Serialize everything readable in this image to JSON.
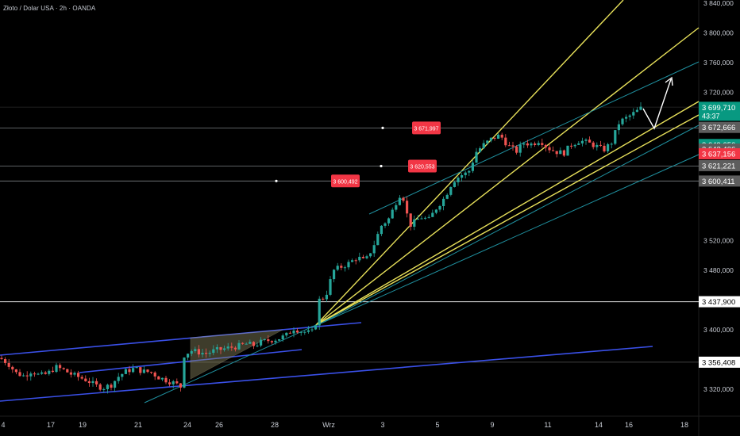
{
  "header": {
    "title": "Złoto / Dolar USA · 2h · OANDA"
  },
  "colors": {
    "background": "#000000",
    "up": "#26a69a",
    "down": "#ef5350",
    "channel": "#3a50e8",
    "fan": "#e7e05a",
    "parallel": "#1f8f9e",
    "level": "#9aa0a6",
    "label_red": "#f23645",
    "price_green": "#089981",
    "price_gray": "#5d5d5d",
    "arrow": "#ffffff"
  },
  "chart_data": {
    "type": "candlestick",
    "title": "Złoto / Dolar USA · 2h · OANDA",
    "y_axis_ticks": [
      "3 840,000",
      "3 800,000",
      "3 760,000",
      "3 720,000",
      "3 520,000",
      "3 480,000",
      "3 400,000",
      "3 320,000"
    ],
    "x_axis_ticks": [
      "4",
      "17",
      "19",
      "21",
      "24",
      "26",
      "28",
      "Wrz",
      "3",
      "5",
      "9",
      "11",
      "14",
      "16",
      "18"
    ],
    "ylim": [
      3300,
      3860
    ],
    "horizontal_levels": [
      {
        "price": 3671.997,
        "label": "3 671,997"
      },
      {
        "price": 3620.553,
        "label": "3 620,553"
      },
      {
        "price": 3600.492,
        "label": "3 600,492"
      }
    ],
    "axis_price_labels": [
      {
        "price": 3699.71,
        "label": "3 699,710",
        "sub": "43:37",
        "style": "green"
      },
      {
        "price": 3672.666,
        "label": "3 672,666",
        "style": "gray"
      },
      {
        "price": 3649.656,
        "label": "3 649,656",
        "style": "green"
      },
      {
        "price": 3643.406,
        "label": "3 643,406",
        "style": "gray"
      },
      {
        "price": 3637.156,
        "label": "3 637,156",
        "style": "red"
      },
      {
        "price": 3621.221,
        "label": "3 621,221",
        "style": "gray"
      },
      {
        "price": 3600.411,
        "label": "3 600,411",
        "style": "gray"
      },
      {
        "price": 3437.9,
        "label": "3 437,900",
        "style": "white"
      },
      {
        "price": 3356.408,
        "label": "3 356,408",
        "style": "white"
      }
    ],
    "price_path": [
      [
        0,
        3362
      ],
      [
        10,
        3355
      ],
      [
        20,
        3342
      ],
      [
        30,
        3338
      ],
      [
        40,
        3345
      ],
      [
        50,
        3338
      ],
      [
        60,
        3341
      ],
      [
        70,
        3350
      ],
      [
        80,
        3346
      ],
      [
        90,
        3340
      ],
      [
        100,
        3336
      ],
      [
        110,
        3332
      ],
      [
        120,
        3325
      ],
      [
        130,
        3322
      ],
      [
        140,
        3326
      ],
      [
        150,
        3338
      ],
      [
        160,
        3345
      ],
      [
        170,
        3348
      ],
      [
        180,
        3344
      ],
      [
        190,
        3343
      ],
      [
        200,
        3336
      ],
      [
        210,
        3332
      ],
      [
        220,
        3328
      ],
      [
        228,
        3323
      ],
      [
        232,
        3366
      ],
      [
        240,
        3372
      ],
      [
        250,
        3370
      ],
      [
        260,
        3368
      ],
      [
        270,
        3372
      ],
      [
        280,
        3374
      ],
      [
        290,
        3376
      ],
      [
        300,
        3378
      ],
      [
        310,
        3381
      ],
      [
        320,
        3379
      ],
      [
        330,
        3384
      ],
      [
        340,
        3386
      ],
      [
        350,
        3388
      ],
      [
        360,
        3392
      ],
      [
        370,
        3402
      ],
      [
        380,
        3398
      ],
      [
        390,
        3396
      ],
      [
        396,
        3398
      ],
      [
        402,
        3440
      ],
      [
        410,
        3445
      ],
      [
        420,
        3480
      ],
      [
        430,
        3485
      ],
      [
        440,
        3490
      ],
      [
        450,
        3498
      ],
      [
        460,
        3492
      ],
      [
        470,
        3512
      ],
      [
        480,
        3540
      ],
      [
        490,
        3550
      ],
      [
        500,
        3575
      ],
      [
        505,
        3585
      ],
      [
        510,
        3572
      ],
      [
        515,
        3540
      ],
      [
        522,
        3545
      ],
      [
        530,
        3552
      ],
      [
        540,
        3548
      ],
      [
        550,
        3565
      ],
      [
        560,
        3578
      ],
      [
        570,
        3600
      ],
      [
        580,
        3608
      ],
      [
        590,
        3612
      ],
      [
        600,
        3640
      ],
      [
        610,
        3650
      ],
      [
        620,
        3658
      ],
      [
        630,
        3662
      ],
      [
        640,
        3648
      ],
      [
        650,
        3640
      ],
      [
        660,
        3652
      ],
      [
        670,
        3650
      ],
      [
        680,
        3656
      ],
      [
        690,
        3645
      ],
      [
        700,
        3640
      ],
      [
        710,
        3638
      ],
      [
        720,
        3650
      ],
      [
        730,
        3655
      ],
      [
        740,
        3652
      ],
      [
        750,
        3648
      ],
      [
        760,
        3642
      ],
      [
        770,
        3652
      ],
      [
        780,
        3680
      ],
      [
        790,
        3686
      ],
      [
        800,
        3693
      ],
      [
        808,
        3699
      ]
    ]
  }
}
